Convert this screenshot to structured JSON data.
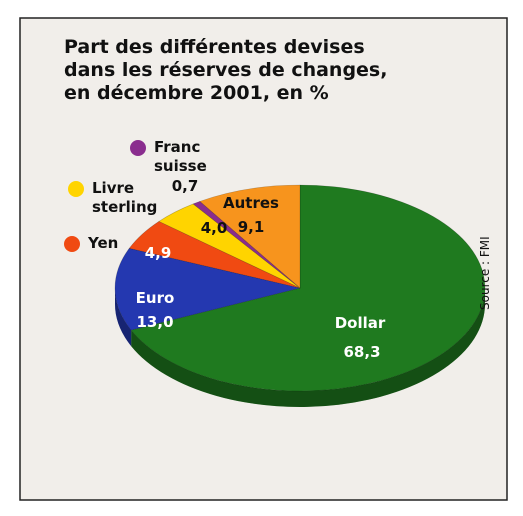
{
  "chart_data": {
    "type": "pie",
    "title": "Part des différentes devises\ndans les réserves de changes,\nen décembre 2001, en %",
    "source": "Source : FMI",
    "categories": [
      "Dollar",
      "Euro",
      "Yen",
      "Livre\nsterling",
      "Franc\nsuisse",
      "Autres"
    ],
    "values": [
      68.3,
      13.0,
      4.9,
      4.0,
      0.7,
      9.1
    ],
    "value_labels": [
      "68,3",
      "13,0",
      "4,9",
      "4,0",
      "0,7",
      "9,1"
    ],
    "colors": [
      "#1f7a1f",
      "#2438b0",
      "#f04a12",
      "#ffd400",
      "#8a2d8e",
      "#f7941d"
    ]
  }
}
